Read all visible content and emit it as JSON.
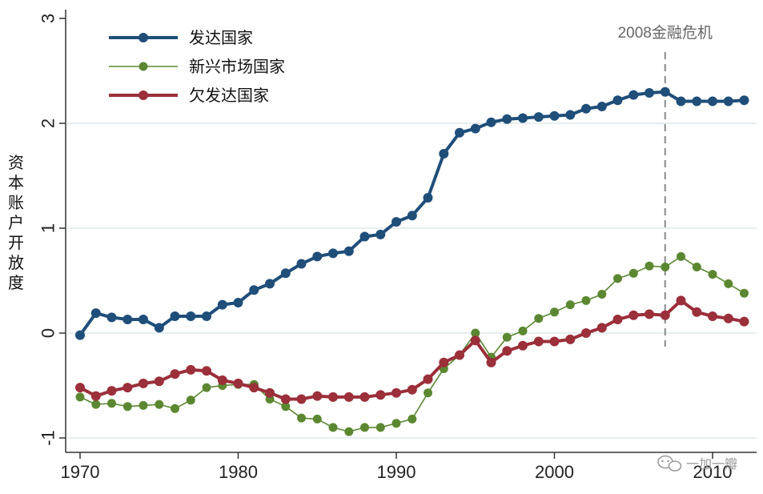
{
  "chart_data": {
    "type": "line",
    "title": "",
    "xlabel": "",
    "ylabel": "资本账户开放度",
    "xlim": [
      1969.6,
      2012.8
    ],
    "ylim": [
      -1.1,
      3.1
    ],
    "x_ticks": [
      1970,
      1980,
      1990,
      2000,
      2010
    ],
    "y_ticks": [
      -1,
      0,
      1,
      2,
      3
    ],
    "grid": "horizontal",
    "legend_position": "top-left",
    "annotation": {
      "label": "2008金融危机",
      "x": 2007
    },
    "x": [
      1970,
      1971,
      1972,
      1973,
      1974,
      1975,
      1976,
      1977,
      1978,
      1979,
      1980,
      1981,
      1982,
      1983,
      1984,
      1985,
      1986,
      1987,
      1988,
      1989,
      1990,
      1991,
      1992,
      1993,
      1994,
      1995,
      1996,
      1997,
      1998,
      1999,
      2000,
      2001,
      2002,
      2003,
      2004,
      2005,
      2006,
      2007,
      2008,
      2009,
      2010,
      2011,
      2012
    ],
    "series": [
      {
        "name": "发达国家",
        "color": "#1f4e79",
        "style": "thick",
        "values": [
          -0.02,
          0.19,
          0.15,
          0.13,
          0.13,
          0.05,
          0.16,
          0.16,
          0.16,
          0.27,
          0.29,
          0.41,
          0.47,
          0.57,
          0.66,
          0.73,
          0.76,
          0.78,
          0.92,
          0.94,
          1.06,
          1.12,
          1.29,
          1.71,
          1.91,
          1.95,
          2.01,
          2.04,
          2.05,
          2.06,
          2.07,
          2.08,
          2.14,
          2.16,
          2.22,
          2.27,
          2.29,
          2.3,
          2.21,
          2.21,
          2.21,
          2.21,
          2.22
        ]
      },
      {
        "name": "新兴市场国家",
        "color": "#5b8731",
        "style": "thin",
        "values": [
          -0.61,
          -0.68,
          -0.67,
          -0.7,
          -0.69,
          -0.68,
          -0.72,
          -0.64,
          -0.52,
          -0.5,
          -0.49,
          -0.49,
          -0.63,
          -0.7,
          -0.81,
          -0.82,
          -0.9,
          -0.94,
          -0.9,
          -0.9,
          -0.86,
          -0.82,
          -0.57,
          -0.34,
          -0.21,
          0.0,
          -0.23,
          -0.04,
          0.02,
          0.14,
          0.2,
          0.27,
          0.31,
          0.37,
          0.52,
          0.57,
          0.64,
          0.63,
          0.73,
          0.63,
          0.56,
          0.47,
          0.38
        ]
      },
      {
        "name": "欠发达国家",
        "color": "#9b2f3a",
        "style": "thick",
        "values": [
          -0.52,
          -0.6,
          -0.55,
          -0.52,
          -0.48,
          -0.46,
          -0.39,
          -0.35,
          -0.36,
          -0.45,
          -0.48,
          -0.52,
          -0.57,
          -0.63,
          -0.63,
          -0.6,
          -0.61,
          -0.61,
          -0.61,
          -0.59,
          -0.57,
          -0.54,
          -0.44,
          -0.28,
          -0.21,
          -0.07,
          -0.28,
          -0.17,
          -0.12,
          -0.08,
          -0.08,
          -0.06,
          0.0,
          0.05,
          0.13,
          0.17,
          0.18,
          0.17,
          0.31,
          0.2,
          0.16,
          0.14,
          0.11
        ]
      }
    ]
  },
  "watermark": {
    "text": "一加一瓣"
  }
}
